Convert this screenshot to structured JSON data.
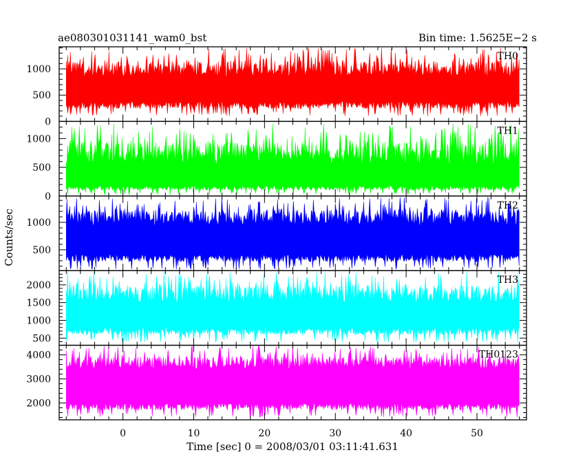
{
  "header": {
    "left_title": "ae080301031141_wam0_bst",
    "right_title": "Bin time: 1.5625E−2 s"
  },
  "chart_data": {
    "type": "line",
    "xlabel": "Time [sec] 0 = 2008/03/01 03:11:41.631",
    "ylabel": "Counts/sec",
    "xlim": [
      -9,
      57
    ],
    "x_range_of_data": [
      -8,
      56
    ],
    "xticks": [
      0,
      10,
      20,
      30,
      40,
      50
    ],
    "xtick_labels": [
      "0",
      "10",
      "20",
      "30",
      "40",
      "50"
    ],
    "bin_time_s": 0.015625,
    "panels": [
      {
        "name": "TH0",
        "color": "#ff0000",
        "ylim": [
          0,
          1420
        ],
        "yticks": [
          0,
          500,
          1000
        ],
        "ytick_labels": [
          "0",
          "500",
          "1000"
        ],
        "band_low": [
          100,
          380
        ],
        "band_high": [
          850,
          1400
        ]
      },
      {
        "name": "TH1",
        "color": "#00ff00",
        "ylim": [
          0,
          1300
        ],
        "yticks": [
          0,
          500,
          1000
        ],
        "ytick_labels": [
          "0",
          "500",
          "1000"
        ],
        "band_low": [
          20,
          180
        ],
        "band_high": [
          550,
          1260
        ]
      },
      {
        "name": "TH2",
        "color": "#0000ff",
        "ylim": [
          120,
          1480
        ],
        "yticks": [
          500,
          1000
        ],
        "ytick_labels": [
          "500",
          "1000"
        ],
        "band_low": [
          140,
          420
        ],
        "band_high": [
          950,
          1460
        ]
      },
      {
        "name": "TH3",
        "color": "#00ffff",
        "ylim": [
          300,
          2400
        ],
        "yticks": [
          500,
          1000,
          1500,
          2000
        ],
        "ytick_labels": [
          "500",
          "1000",
          "1500",
          "2000"
        ],
        "band_low": [
          380,
          800
        ],
        "band_high": [
          1500,
          2380
        ]
      },
      {
        "name": "TH0123",
        "color": "#ff00ff",
        "ylim": [
          1300,
          4400
        ],
        "yticks": [
          2000,
          3000,
          4000
        ],
        "ytick_labels": [
          "2000",
          "3000",
          "4000"
        ],
        "band_low": [
          1400,
          2000
        ],
        "band_high": [
          3400,
          4380
        ]
      }
    ]
  }
}
